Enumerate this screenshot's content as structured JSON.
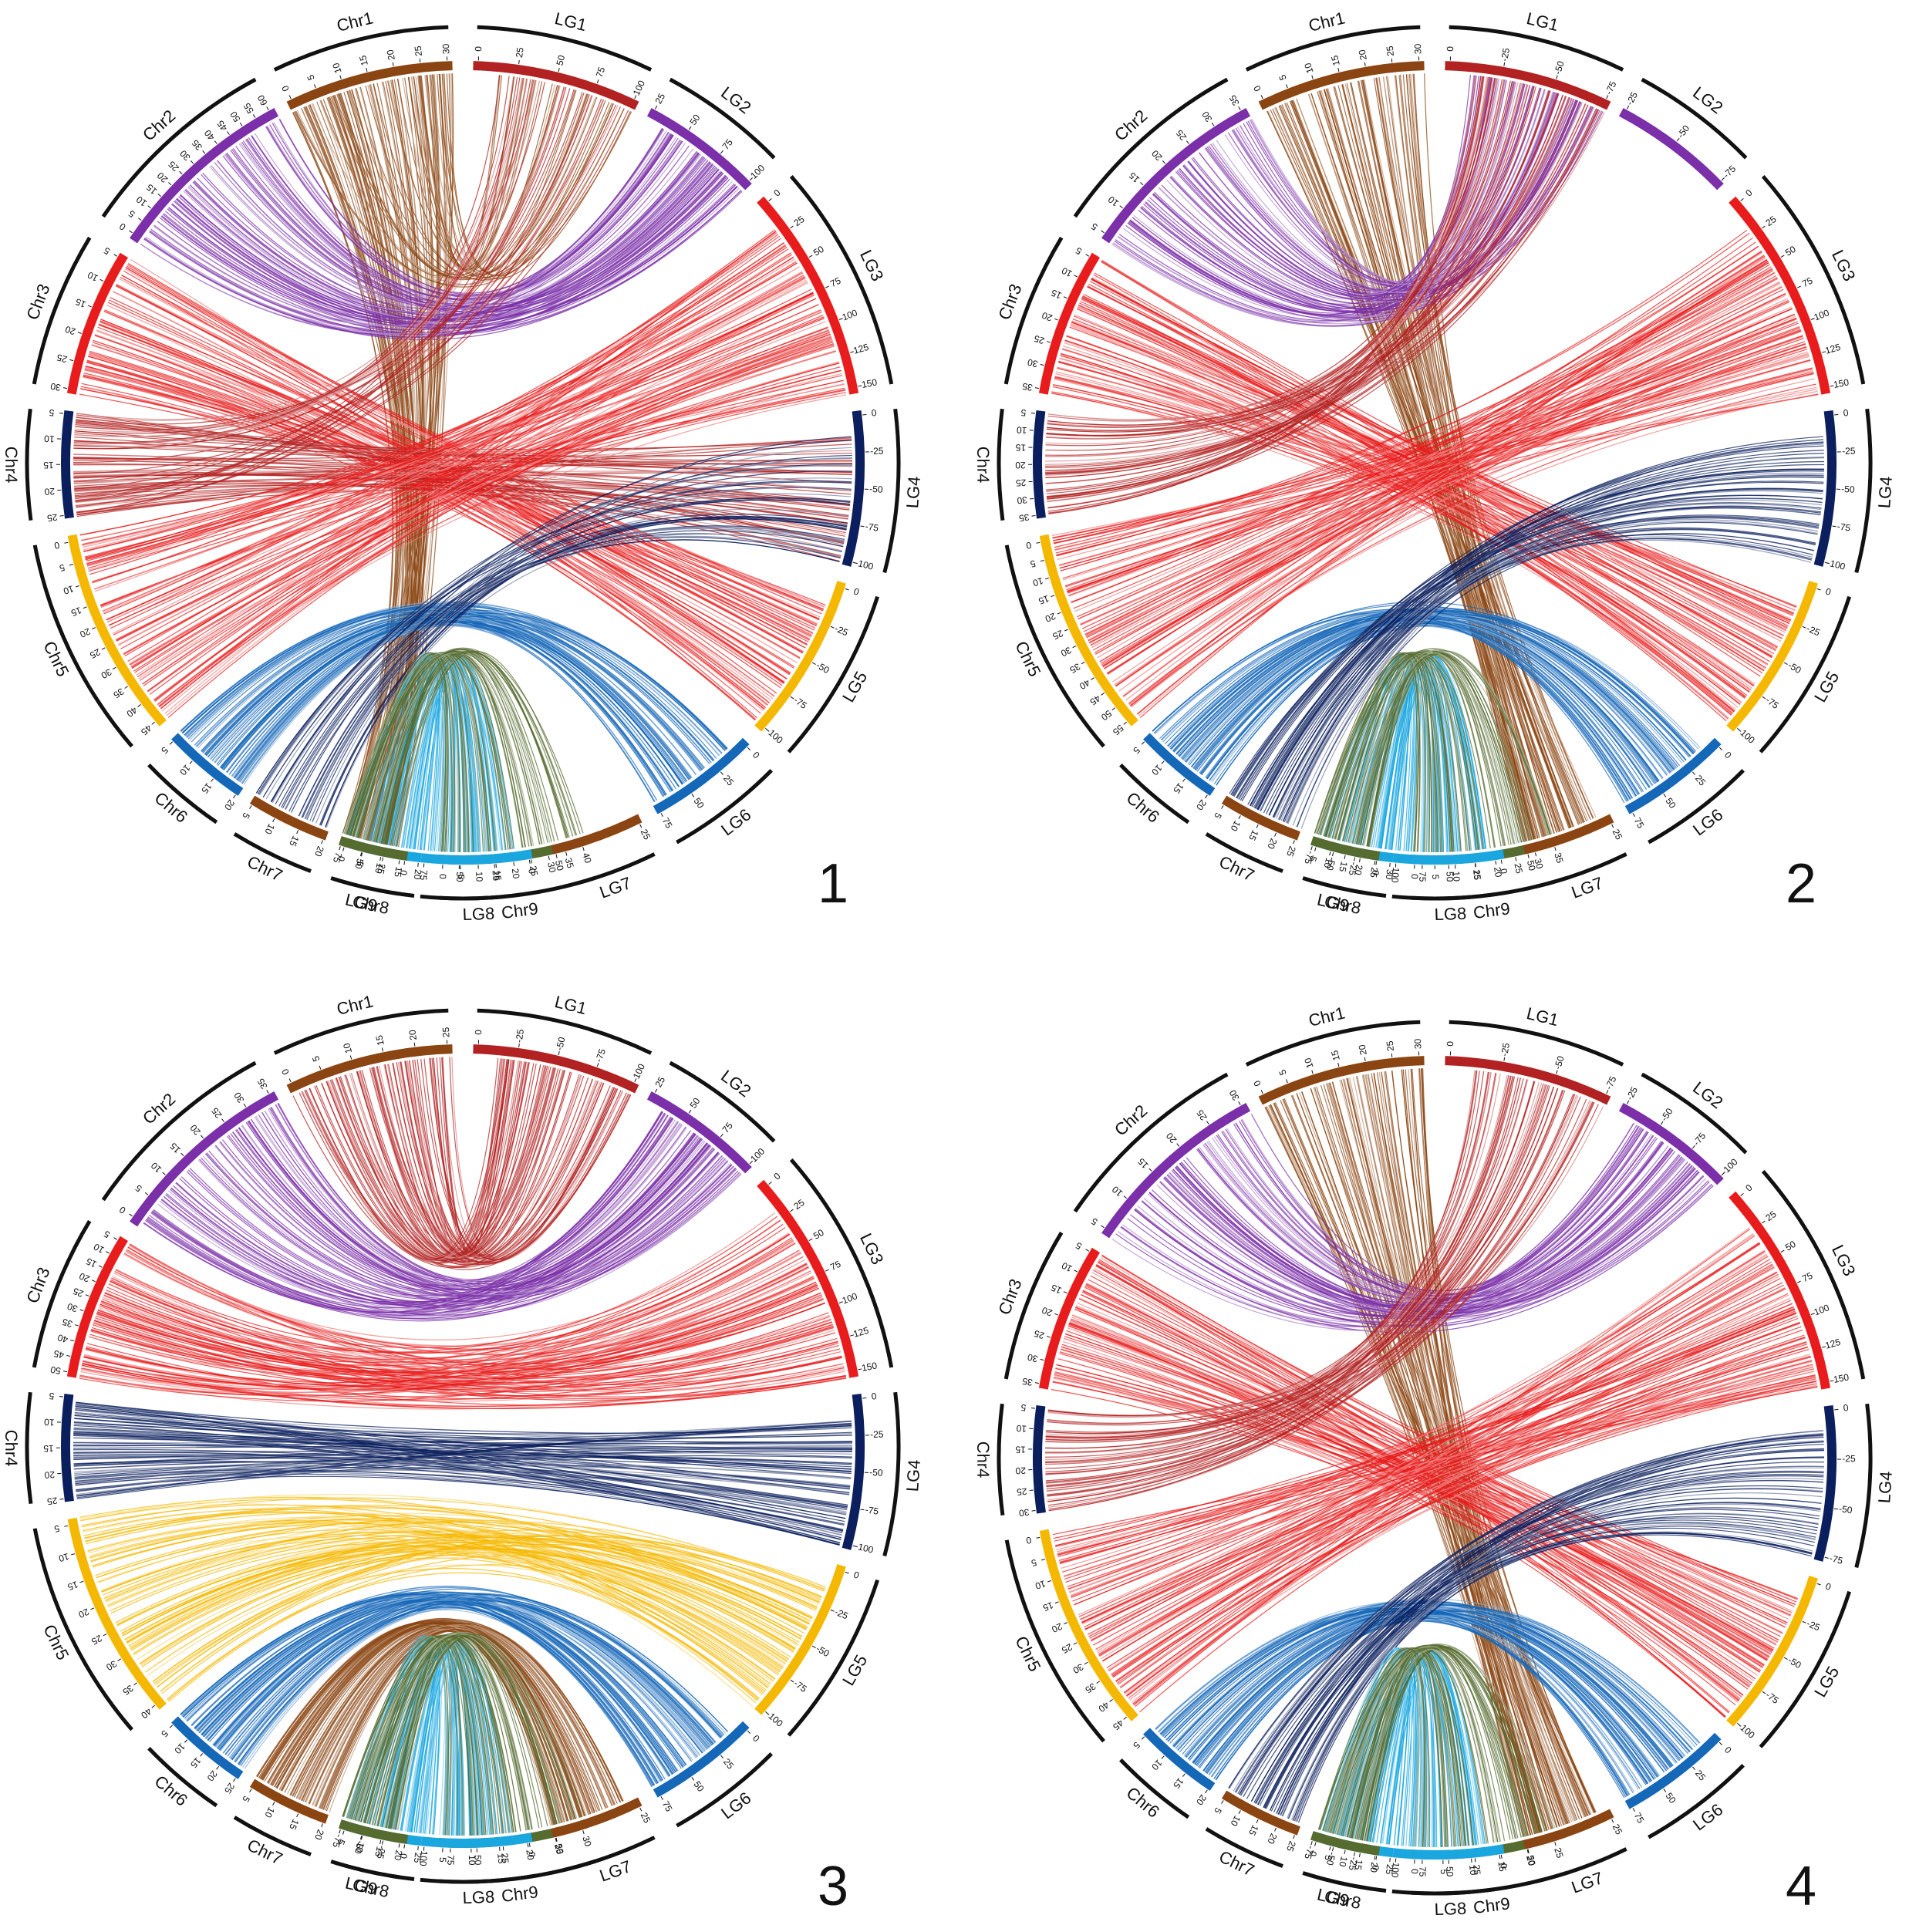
{
  "colors": {
    "Chr1": "#8B4513",
    "LG1": "#B22222",
    "Chr2": "#7B2FA8",
    "LG2": "#7B2FA8",
    "Chr3": "#E81C1C",
    "LG3": "#E81C1C",
    "Chr4": "#0B1F5E",
    "LG4": "#0B1F5E",
    "Chr5": "#F5B800",
    "LG5": "#F5B800",
    "Chr6": "#1567B8",
    "LG6": "#1567B8",
    "Chr7": "#8B4513",
    "LG7": "#8B4513",
    "Chr8": "#1AA7E0",
    "LG8": "#1AA7E0",
    "Chr9": "#556B2F",
    "LG9": "#556B2F",
    "outer_ring": "#111111"
  },
  "panels": [
    {
      "number": "1",
      "left_segments": [
        {
          "name": "Chr1",
          "ticks": [
            "30",
            "25",
            "20",
            "15",
            "10",
            "5",
            "0"
          ]
        },
        {
          "name": "Chr2",
          "ticks": [
            "60",
            "55",
            "50",
            "45",
            "40",
            "35",
            "30",
            "25",
            "20",
            "15",
            "10",
            "5",
            "0"
          ]
        },
        {
          "name": "Chr3",
          "ticks": [
            "5",
            "10",
            "15",
            "20",
            "25",
            "30"
          ]
        },
        {
          "name": "Chr4",
          "ticks": [
            "5",
            "10",
            "15",
            "20",
            "25"
          ]
        },
        {
          "name": "Chr5",
          "ticks": [
            "0",
            "5",
            "10",
            "15",
            "20",
            "25",
            "30",
            "35",
            "40",
            "45"
          ]
        },
        {
          "name": "Chr6",
          "ticks": [
            "5",
            "10",
            "15",
            "20"
          ]
        },
        {
          "name": "Chr7",
          "ticks": [
            "5",
            "10",
            "15",
            "20"
          ]
        },
        {
          "name": "Chr8",
          "ticks": [
            "0",
            "5",
            "10",
            "15",
            "20"
          ]
        },
        {
          "name": "Chr9",
          "ticks": [
            "0",
            "5",
            "10",
            "15",
            "20",
            "25",
            "30",
            "35",
            "40"
          ]
        }
      ],
      "right_segments": [
        {
          "name": "LG1",
          "ticks": [
            "0",
            "25",
            "50",
            "75",
            "100"
          ]
        },
        {
          "name": "LG2",
          "ticks": [
            "25",
            "50",
            "75",
            "100"
          ]
        },
        {
          "name": "LG3",
          "ticks": [
            "0",
            "25",
            "50",
            "75",
            "100",
            "125",
            "150"
          ]
        },
        {
          "name": "LG4",
          "ticks": [
            "0",
            "-25",
            "-50",
            "-75",
            "-100"
          ]
        },
        {
          "name": "LG5",
          "ticks": [
            "0",
            "-25",
            "-50",
            "-75",
            "-100"
          ]
        },
        {
          "name": "LG6",
          "ticks": [
            "0",
            "25",
            "50",
            "75"
          ]
        },
        {
          "name": "LG7",
          "ticks": [
            "25",
            "50"
          ]
        },
        {
          "name": "LG8",
          "ticks": [
            "0",
            "25",
            "50",
            "75"
          ]
        },
        {
          "name": "LG9",
          "ticks": [
            "0",
            "25",
            "50",
            "75"
          ]
        }
      ]
    },
    {
      "number": "2",
      "left_segments": [
        {
          "name": "Chr1",
          "ticks": [
            "30",
            "25",
            "20",
            "15",
            "10",
            "5",
            "0"
          ]
        },
        {
          "name": "Chr2",
          "ticks": [
            "35",
            "30",
            "25",
            "20",
            "15",
            "10",
            "5"
          ]
        },
        {
          "name": "Chr3",
          "ticks": [
            "5",
            "10",
            "15",
            "20",
            "25",
            "30",
            "35"
          ]
        },
        {
          "name": "Chr4",
          "ticks": [
            "5",
            "10",
            "15",
            "20",
            "25",
            "30",
            "35"
          ]
        },
        {
          "name": "Chr5",
          "ticks": [
            "0",
            "5",
            "10",
            "15",
            "20",
            "25",
            "30",
            "35",
            "40",
            "45",
            "50",
            "55"
          ]
        },
        {
          "name": "Chr6",
          "ticks": [
            "5",
            "10",
            "15",
            "20"
          ]
        },
        {
          "name": "Chr7",
          "ticks": [
            "5",
            "10",
            "15",
            "20",
            "25"
          ]
        },
        {
          "name": "Chr8",
          "ticks": [
            "5",
            "10",
            "15",
            "20",
            "25",
            "30"
          ]
        },
        {
          "name": "Chr9",
          "ticks": [
            "0",
            "5",
            "10",
            "15",
            "20",
            "25",
            "30",
            "35"
          ]
        }
      ],
      "right_segments": [
        {
          "name": "LG1",
          "ticks": [
            "0",
            "-25",
            "-50",
            "-75"
          ]
        },
        {
          "name": "LG2",
          "ticks": [
            "-25",
            "-50",
            "-75"
          ]
        },
        {
          "name": "LG3",
          "ticks": [
            "0",
            "25",
            "50",
            "75",
            "100",
            "125",
            "150"
          ]
        },
        {
          "name": "LG4",
          "ticks": [
            "0",
            "-25",
            "-50",
            "-75",
            "-100"
          ]
        },
        {
          "name": "LG5",
          "ticks": [
            "0",
            "-25",
            "-50",
            "-75",
            "-100"
          ]
        },
        {
          "name": "LG6",
          "ticks": [
            "0",
            "25",
            "50",
            "75"
          ]
        },
        {
          "name": "LG7",
          "ticks": [
            "25",
            "50"
          ]
        },
        {
          "name": "LG8",
          "ticks": [
            "0",
            "25",
            "50",
            "75",
            "100"
          ]
        },
        {
          "name": "LG9",
          "ticks": [
            "0",
            "-25",
            "-50",
            "-75"
          ]
        }
      ]
    },
    {
      "number": "3",
      "left_segments": [
        {
          "name": "Chr1",
          "ticks": [
            "25",
            "20",
            "15",
            "10",
            "5",
            "0"
          ]
        },
        {
          "name": "Chr2",
          "ticks": [
            "35",
            "30",
            "25",
            "20",
            "15",
            "10",
            "5",
            "0"
          ]
        },
        {
          "name": "Chr3",
          "ticks": [
            "5",
            "10",
            "15",
            "20",
            "25",
            "30",
            "35",
            "40",
            "45",
            "50"
          ]
        },
        {
          "name": "Chr4",
          "ticks": [
            "5",
            "10",
            "15",
            "20",
            "25"
          ]
        },
        {
          "name": "Chr5",
          "ticks": [
            "5",
            "10",
            "15",
            "20",
            "25",
            "30",
            "35",
            "40"
          ]
        },
        {
          "name": "Chr6",
          "ticks": [
            "5",
            "10",
            "15",
            "20",
            "25"
          ]
        },
        {
          "name": "Chr7",
          "ticks": [
            "5",
            "10",
            "15",
            "20"
          ]
        },
        {
          "name": "Chr8",
          "ticks": [
            "5",
            "10",
            "15",
            "20",
            "25"
          ]
        },
        {
          "name": "Chr9",
          "ticks": [
            "5",
            "10",
            "15",
            "20",
            "25",
            "30"
          ]
        }
      ],
      "right_segments": [
        {
          "name": "LG1",
          "ticks": [
            "0",
            "-25",
            "-50",
            "-75",
            "100"
          ]
        },
        {
          "name": "LG2",
          "ticks": [
            "25",
            "50",
            "75",
            "100"
          ]
        },
        {
          "name": "LG3",
          "ticks": [
            "0",
            "25",
            "50",
            "75",
            "100",
            "125",
            "150"
          ]
        },
        {
          "name": "LG4",
          "ticks": [
            "0",
            "-25",
            "-50",
            "-75",
            "-100"
          ]
        },
        {
          "name": "LG5",
          "ticks": [
            "0",
            "-25",
            "-50",
            "-75",
            "-100"
          ]
        },
        {
          "name": "LG6",
          "ticks": [
            "0",
            "25",
            "50",
            "75"
          ]
        },
        {
          "name": "LG7",
          "ticks": [
            "25",
            "50"
          ]
        },
        {
          "name": "LG8",
          "ticks": [
            "0",
            "25",
            "50",
            "75",
            "100"
          ]
        },
        {
          "name": "LG9",
          "ticks": [
            "0",
            "-25",
            "-50",
            "-75"
          ]
        }
      ]
    },
    {
      "number": "4",
      "left_segments": [
        {
          "name": "Chr1",
          "ticks": [
            "30",
            "25",
            "20",
            "15",
            "10",
            "5",
            "0"
          ]
        },
        {
          "name": "Chr2",
          "ticks": [
            "30",
            "25",
            "20",
            "15",
            "10",
            "5"
          ]
        },
        {
          "name": "Chr3",
          "ticks": [
            "5",
            "10",
            "15",
            "20",
            "25",
            "30",
            "35"
          ]
        },
        {
          "name": "Chr4",
          "ticks": [
            "5",
            "10",
            "15",
            "20",
            "25",
            "30"
          ]
        },
        {
          "name": "Chr5",
          "ticks": [
            "0",
            "5",
            "10",
            "15",
            "20",
            "25",
            "30",
            "35",
            "40",
            "45"
          ]
        },
        {
          "name": "Chr6",
          "ticks": [
            "5",
            "10",
            "15",
            "20"
          ]
        },
        {
          "name": "Chr7",
          "ticks": [
            "5",
            "10",
            "15",
            "20",
            "25"
          ]
        },
        {
          "name": "Chr8",
          "ticks": [
            "0",
            "5",
            "10",
            "15",
            "20",
            "25"
          ]
        },
        {
          "name": "Chr9",
          "ticks": [
            "0",
            "5",
            "10",
            "15",
            "20",
            "25"
          ]
        }
      ],
      "right_segments": [
        {
          "name": "LG1",
          "ticks": [
            "0",
            "-25",
            "-50",
            "-75"
          ]
        },
        {
          "name": "LG2",
          "ticks": [
            "-25",
            "-50",
            "-75",
            "-100"
          ]
        },
        {
          "name": "LG3",
          "ticks": [
            "0",
            "25",
            "50",
            "75",
            "100",
            "125",
            "150"
          ]
        },
        {
          "name": "LG4",
          "ticks": [
            "0",
            "-25",
            "-50",
            "-75"
          ]
        },
        {
          "name": "LG5",
          "ticks": [
            "0",
            "-25",
            "-50",
            "-75",
            "-100"
          ]
        },
        {
          "name": "LG6",
          "ticks": [
            "0",
            "25",
            "50",
            "75"
          ]
        },
        {
          "name": "LG7",
          "ticks": [
            "25",
            "50"
          ]
        },
        {
          "name": "LG8",
          "ticks": [
            "0",
            "25",
            "50",
            "75",
            "100"
          ]
        },
        {
          "name": "LG9",
          "ticks": [
            "0",
            "-25",
            "-50",
            "-75"
          ]
        }
      ]
    }
  ]
}
